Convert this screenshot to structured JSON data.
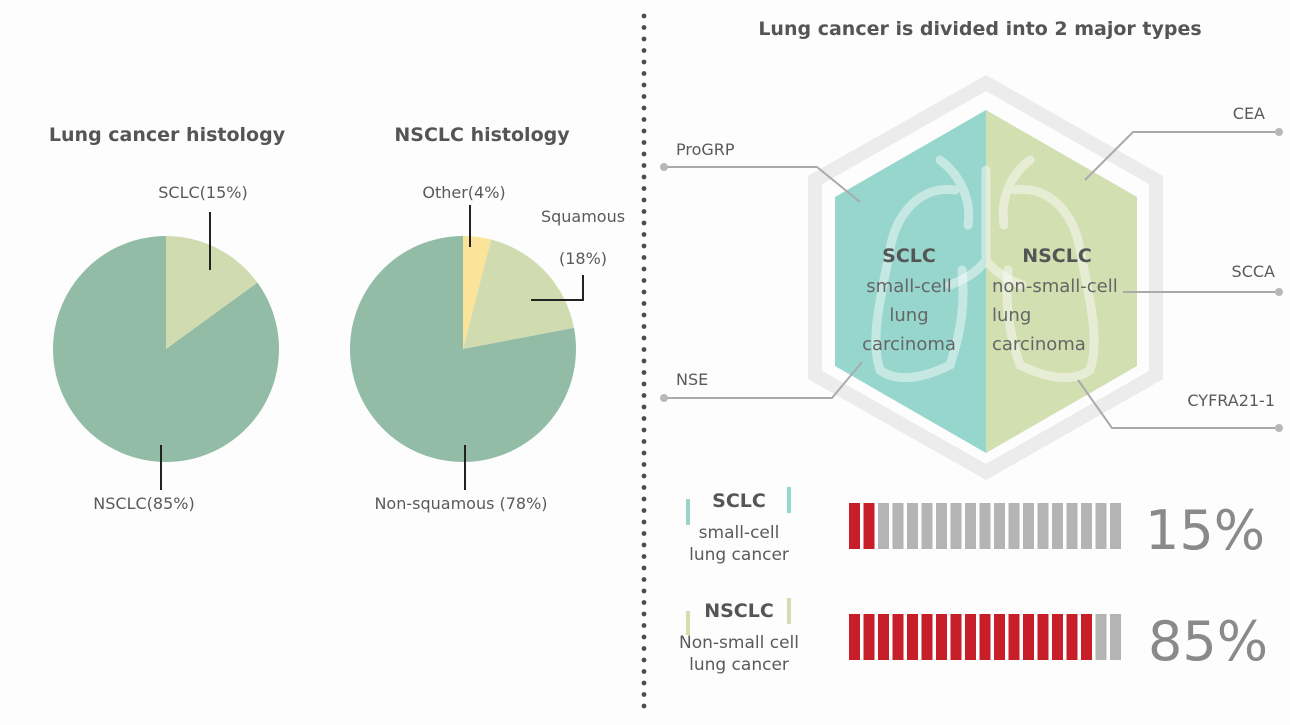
{
  "left_panel": {
    "chart_data": [
      {
        "type": "pie",
        "title": "Lung cancer histology",
        "slices": [
          {
            "label": "SCLC(15%)",
            "value": 15,
            "color": "#d0dcb0"
          },
          {
            "label": "NSCLC(85%)",
            "value": 85,
            "color": "#93bca7"
          }
        ]
      },
      {
        "type": "pie",
        "title": "NSCLC histology",
        "slices": [
          {
            "label": "Other(4%)",
            "value": 4,
            "color": "#fbe49a"
          },
          {
            "label": "Squamous (18%)",
            "label_lines": [
              "Squamous",
              "(18%)"
            ],
            "value": 18,
            "color": "#d0dcb0"
          },
          {
            "label": "Non-squamous (78%)",
            "value": 78,
            "color": "#93bca7"
          }
        ]
      }
    ]
  },
  "right_panel": {
    "title": "Lung cancer is divided into 2 major types",
    "hexagon": {
      "left": {
        "abbr": "SCLC",
        "lines": [
          "small-cell",
          "lung",
          "carcinoma"
        ],
        "color": "#96d6cd"
      },
      "right": {
        "abbr": "NSCLC",
        "lines": [
          "non-small-cell",
          "lung",
          "carcinoma"
        ],
        "color": "#d2dfb1"
      }
    },
    "markers": {
      "left": [
        "ProGRP",
        "NSE"
      ],
      "right": [
        "CEA",
        "SCCA",
        "CYFRA21-1"
      ]
    },
    "proportions": [
      {
        "abbr": "SCLC",
        "desc": [
          "small-cell",
          "lung cancer"
        ],
        "percent_label": "15%",
        "value": 15,
        "filled_segments": 2,
        "total_segments": 19,
        "accent": "#96d6cd"
      },
      {
        "abbr": "NSCLC",
        "desc": [
          "Non-small cell",
          "lung cancer"
        ],
        "percent_label": "85%",
        "value": 85,
        "filled_segments": 17,
        "total_segments": 19,
        "accent": "#d2dfb1"
      }
    ],
    "colors": {
      "filled": "#c81e2a",
      "empty": "#b4b4b4",
      "line": "#aaaaaa",
      "dot": "#4d4d4d"
    }
  }
}
